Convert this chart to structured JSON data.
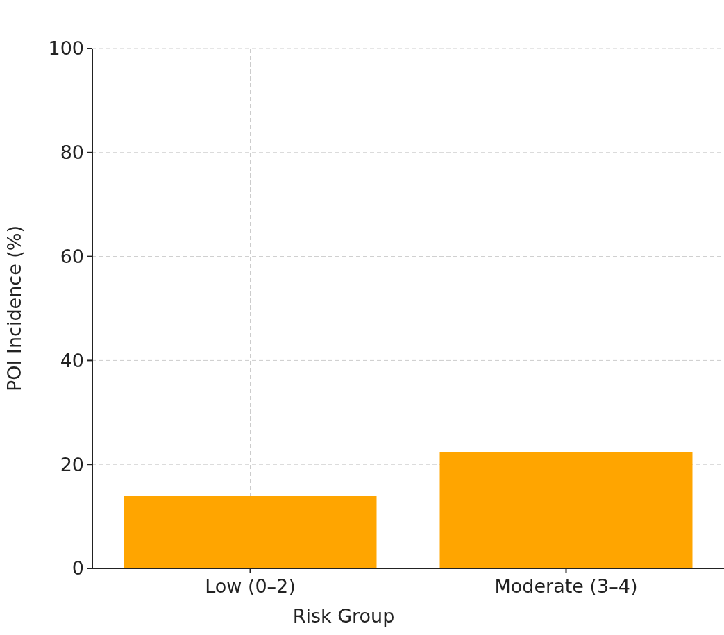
{
  "chart_data": {
    "type": "bar",
    "xlabel": "Risk Group",
    "ylabel": "POI Incidence (%)",
    "categories": [
      "Low (0–2)",
      "Moderate (3–4)"
    ],
    "values": [
      13.9,
      22.3
    ],
    "color": "#ffa500",
    "ylim": [
      0,
      100
    ],
    "yticks": [
      0,
      20,
      40,
      60,
      80,
      100
    ],
    "grid": true
  }
}
